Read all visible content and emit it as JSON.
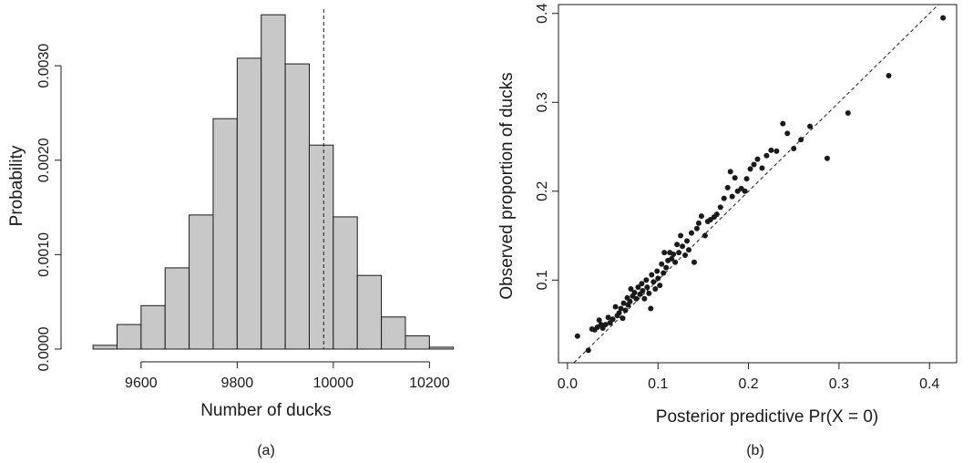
{
  "chart_data": [
    {
      "type": "bar",
      "panel_label": "(a)",
      "title": "",
      "xlabel": "Number of ducks",
      "ylabel": "Probability",
      "bins": [
        {
          "x0": 9500,
          "x1": 9550,
          "value": 4e-05
        },
        {
          "x0": 9550,
          "x1": 9600,
          "value": 0.00026
        },
        {
          "x0": 9600,
          "x1": 9650,
          "value": 0.00046
        },
        {
          "x0": 9650,
          "x1": 9700,
          "value": 0.00086
        },
        {
          "x0": 9700,
          "x1": 9750,
          "value": 0.00142
        },
        {
          "x0": 9750,
          "x1": 9800,
          "value": 0.00244
        },
        {
          "x0": 9800,
          "x1": 9850,
          "value": 0.00308
        },
        {
          "x0": 9850,
          "x1": 9900,
          "value": 0.00354
        },
        {
          "x0": 9900,
          "x1": 9950,
          "value": 0.00302
        },
        {
          "x0": 9950,
          "x1": 10000,
          "value": 0.00216
        },
        {
          "x0": 10000,
          "x1": 10050,
          "value": 0.0014
        },
        {
          "x0": 10050,
          "x1": 10100,
          "value": 0.00078
        },
        {
          "x0": 10100,
          "x1": 10150,
          "value": 0.00034
        },
        {
          "x0": 10150,
          "x1": 10200,
          "value": 0.00014
        },
        {
          "x0": 10200,
          "x1": 10250,
          "value": 2e-05
        }
      ],
      "reference_line_x": 9980,
      "xlim": [
        9460,
        10260
      ],
      "ylim": [
        0,
        0.0036
      ],
      "xticks": [
        9600,
        9800,
        10000,
        10200
      ],
      "yticks": [
        "0.0000",
        "0.0010",
        "0.0020",
        "0.0030"
      ],
      "grid": false,
      "colors": {
        "bar_fill": "#c8c8c8",
        "edge": "#1a1a1a"
      }
    },
    {
      "type": "scatter",
      "panel_label": "(b)",
      "title": "",
      "xlabel": "Posterior predictive Pr(X = 0)",
      "ylabel": "Observed proportion of ducks",
      "xlim": [
        -0.01,
        0.43
      ],
      "ylim": [
        0.007,
        0.41
      ],
      "xticks": [
        "0.0",
        "0.1",
        "0.2",
        "0.3",
        "0.4"
      ],
      "yticks": [
        "0.1",
        "0.2",
        "0.3",
        "0.4"
      ],
      "reference_line": "y = x",
      "grid": false,
      "points": [
        [
          0.011,
          0.037
        ],
        [
          0.023,
          0.021
        ],
        [
          0.027,
          0.045
        ],
        [
          0.03,
          0.044
        ],
        [
          0.033,
          0.047
        ],
        [
          0.035,
          0.055
        ],
        [
          0.037,
          0.05
        ],
        [
          0.039,
          0.046
        ],
        [
          0.042,
          0.05
        ],
        [
          0.045,
          0.058
        ],
        [
          0.047,
          0.052
        ],
        [
          0.05,
          0.056
        ],
        [
          0.053,
          0.07
        ],
        [
          0.055,
          0.06
        ],
        [
          0.057,
          0.063
        ],
        [
          0.059,
          0.068
        ],
        [
          0.061,
          0.057
        ],
        [
          0.062,
          0.074
        ],
        [
          0.064,
          0.066
        ],
        [
          0.066,
          0.08
        ],
        [
          0.067,
          0.072
        ],
        [
          0.069,
          0.076
        ],
        [
          0.07,
          0.09
        ],
        [
          0.072,
          0.082
        ],
        [
          0.074,
          0.086
        ],
        [
          0.076,
          0.079
        ],
        [
          0.078,
          0.092
        ],
        [
          0.08,
          0.084
        ],
        [
          0.082,
          0.096
        ],
        [
          0.083,
          0.088
        ],
        [
          0.085,
          0.079
        ],
        [
          0.087,
          0.1
        ],
        [
          0.088,
          0.092
        ],
        [
          0.09,
          0.085
        ],
        [
          0.092,
          0.068
        ],
        [
          0.093,
          0.106
        ],
        [
          0.095,
          0.098
        ],
        [
          0.097,
          0.09
        ],
        [
          0.099,
          0.11
        ],
        [
          0.1,
          0.102
        ],
        [
          0.102,
          0.094
        ],
        [
          0.104,
          0.118
        ],
        [
          0.106,
          0.108
        ],
        [
          0.107,
          0.131
        ],
        [
          0.109,
          0.114
        ],
        [
          0.111,
          0.122
        ],
        [
          0.113,
          0.131
        ],
        [
          0.115,
          0.124
        ],
        [
          0.117,
          0.129
        ],
        [
          0.119,
          0.12
        ],
        [
          0.121,
          0.14
        ],
        [
          0.123,
          0.131
        ],
        [
          0.125,
          0.15
        ],
        [
          0.127,
          0.138
        ],
        [
          0.13,
          0.128
        ],
        [
          0.132,
          0.144
        ],
        [
          0.134,
          0.134
        ],
        [
          0.137,
          0.153
        ],
        [
          0.14,
          0.12
        ],
        [
          0.143,
          0.158
        ],
        [
          0.145,
          0.164
        ],
        [
          0.148,
          0.172
        ],
        [
          0.152,
          0.15
        ],
        [
          0.155,
          0.166
        ],
        [
          0.158,
          0.168
        ],
        [
          0.162,
          0.171
        ],
        [
          0.165,
          0.174
        ],
        [
          0.169,
          0.182
        ],
        [
          0.173,
          0.192
        ],
        [
          0.177,
          0.204
        ],
        [
          0.18,
          0.222
        ],
        [
          0.182,
          0.194
        ],
        [
          0.185,
          0.215
        ],
        [
          0.188,
          0.2
        ],
        [
          0.192,
          0.203
        ],
        [
          0.196,
          0.2
        ],
        [
          0.198,
          0.214
        ],
        [
          0.202,
          0.225
        ],
        [
          0.206,
          0.23
        ],
        [
          0.21,
          0.236
        ],
        [
          0.215,
          0.226
        ],
        [
          0.22,
          0.24
        ],
        [
          0.225,
          0.246
        ],
        [
          0.231,
          0.245
        ],
        [
          0.238,
          0.276
        ],
        [
          0.243,
          0.265
        ],
        [
          0.25,
          0.248
        ],
        [
          0.258,
          0.258
        ],
        [
          0.268,
          0.273
        ],
        [
          0.287,
          0.237
        ],
        [
          0.31,
          0.288
        ],
        [
          0.355,
          0.33
        ],
        [
          0.415,
          0.395
        ]
      ],
      "colors": {
        "point": "#1a1a1a"
      }
    }
  ]
}
